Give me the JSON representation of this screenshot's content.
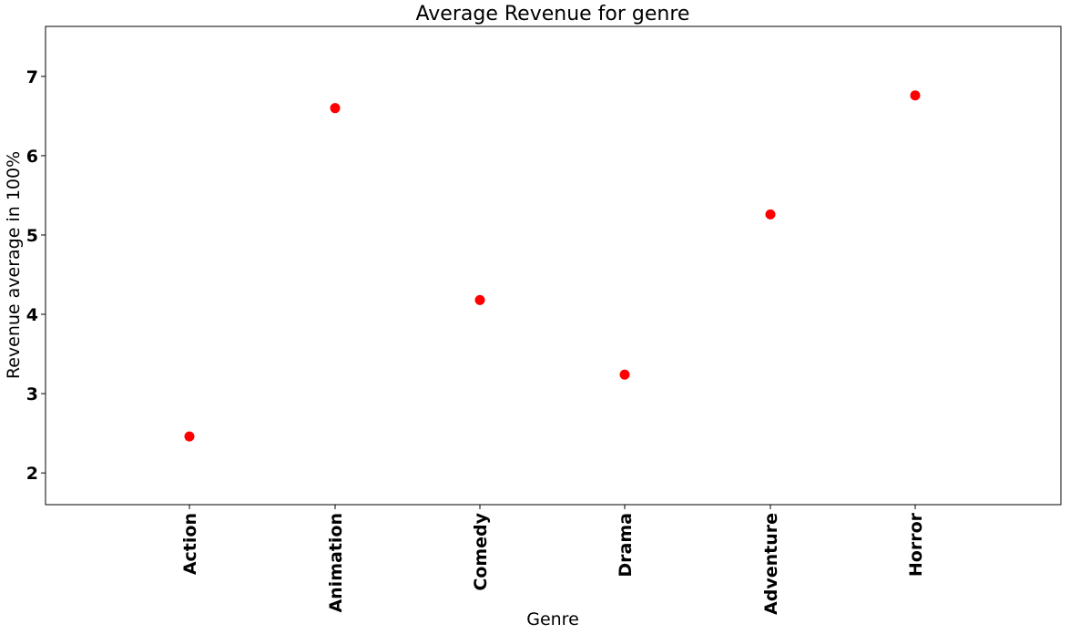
{
  "chart_data": {
    "type": "scatter",
    "title": "Average Revenue for genre",
    "xlabel": "Genre",
    "ylabel": "Revenue average in 100%",
    "categories": [
      "Action",
      "Animation",
      "Comedy",
      "Drama",
      "Adventure",
      "Horror"
    ],
    "values": [
      2.46,
      6.6,
      4.18,
      3.24,
      5.26,
      6.76
    ],
    "yticks": [
      2,
      3,
      4,
      5,
      6,
      7
    ],
    "ylim": [
      1.6,
      7.63
    ],
    "grid": false,
    "marker_color": "#ff0000"
  }
}
